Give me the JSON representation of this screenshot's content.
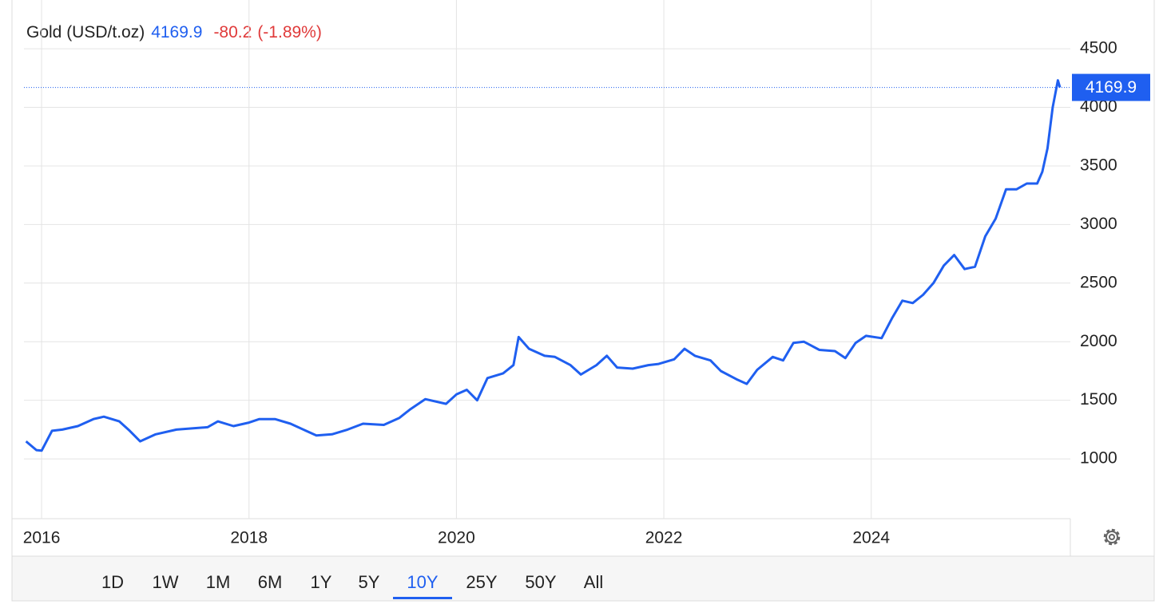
{
  "chart_data": {
    "type": "line",
    "title": "Gold (USD/t.oz)",
    "last_value": 4169.9,
    "change": -80.2,
    "change_percent": {
      "value": -1.89,
      "label": "(-1.89%)"
    },
    "color": "#1f5ff0",
    "x": [
      2015.85,
      2015.95,
      2016.0,
      2016.1,
      2016.2,
      2016.35,
      2016.5,
      2016.6,
      2016.75,
      2016.85,
      2016.95,
      2017.1,
      2017.3,
      2017.45,
      2017.6,
      2017.7,
      2017.85,
      2018.0,
      2018.1,
      2018.25,
      2018.4,
      2018.55,
      2018.65,
      2018.8,
      2018.95,
      2019.1,
      2019.3,
      2019.45,
      2019.55,
      2019.7,
      2019.9,
      2020.0,
      2020.1,
      2020.2,
      2020.3,
      2020.45,
      2020.55,
      2020.6,
      2020.7,
      2020.85,
      2020.95,
      2021.1,
      2021.2,
      2021.35,
      2021.45,
      2021.55,
      2021.7,
      2021.85,
      2021.95,
      2022.1,
      2022.2,
      2022.3,
      2022.45,
      2022.55,
      2022.7,
      2022.8,
      2022.9,
      2023.05,
      2023.15,
      2023.25,
      2023.35,
      2023.5,
      2023.65,
      2023.75,
      2023.85,
      2023.95,
      2024.1,
      2024.2,
      2024.3,
      2024.4,
      2024.5,
      2024.6,
      2024.7,
      2024.8,
      2024.9,
      2025.0,
      2025.1,
      2025.2,
      2025.3,
      2025.4,
      2025.5,
      2025.6,
      2025.65,
      2025.7,
      2025.75,
      2025.8,
      2025.82
    ],
    "values": [
      1150,
      1075,
      1070,
      1240,
      1250,
      1280,
      1340,
      1360,
      1320,
      1240,
      1150,
      1210,
      1250,
      1260,
      1270,
      1320,
      1280,
      1310,
      1340,
      1340,
      1300,
      1240,
      1200,
      1210,
      1250,
      1300,
      1290,
      1350,
      1420,
      1510,
      1470,
      1550,
      1590,
      1500,
      1690,
      1730,
      1800,
      2040,
      1940,
      1880,
      1870,
      1800,
      1720,
      1800,
      1880,
      1780,
      1770,
      1800,
      1810,
      1850,
      1940,
      1880,
      1840,
      1750,
      1680,
      1640,
      1760,
      1870,
      1840,
      1990,
      2000,
      1930,
      1920,
      1860,
      1990,
      2050,
      2030,
      2200,
      2350,
      2330,
      2400,
      2500,
      2650,
      2740,
      2620,
      2640,
      2900,
      3050,
      3300,
      3300,
      3350,
      3350,
      3450,
      3650,
      4000,
      4230,
      4169.9
    ],
    "xlim": [
      2015.83,
      2025.92
    ],
    "xticks": [
      2016,
      2018,
      2020,
      2022,
      2024
    ],
    "ylim": [
      490,
      4630
    ],
    "yticks": [
      1000,
      1500,
      2000,
      2500,
      3000,
      3500,
      4000,
      4500
    ],
    "grid": true,
    "ranges": [
      "1D",
      "1W",
      "1M",
      "6M",
      "1Y",
      "5Y",
      "10Y",
      "25Y",
      "50Y",
      "All"
    ],
    "selected_range": "10Y"
  }
}
